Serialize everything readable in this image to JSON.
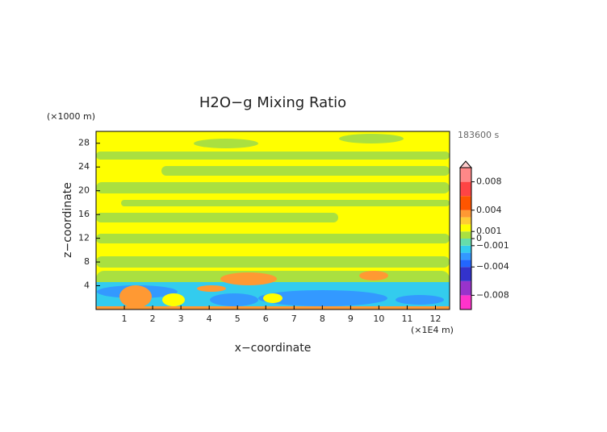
{
  "chart_data": {
    "type": "contour",
    "title": "H2O−g Mixing Ratio",
    "x_label": "x−coordinate",
    "y_label": "z−coordinate",
    "x_unit": "(×1E4 m)",
    "y_unit": "(×1000 m)",
    "time_label": "183600 s",
    "xlim": [
      0,
      12.5
    ],
    "xticks": [
      1,
      2,
      3,
      4,
      5,
      6,
      7,
      8,
      9,
      10,
      11,
      12
    ],
    "ylim": [
      0,
      30
    ],
    "yticks": [
      4,
      8,
      12,
      16,
      20,
      24,
      28
    ],
    "colorbar": {
      "clim": [
        -0.01,
        0.01
      ],
      "levels": [
        -0.01,
        -0.008,
        -0.006,
        -0.004,
        -0.003,
        -0.002,
        -0.001,
        0,
        0.001,
        0.002,
        0.003,
        0.004,
        0.006,
        0.008,
        0.01
      ],
      "colors": [
        "#ff33cc",
        "#9933cc",
        "#3333cc",
        "#2266ff",
        "#3399ff",
        "#33ccee",
        "#66ddaa",
        "#aae040",
        "#ffff00",
        "#ffcc33",
        "#ff9933",
        "#ff5500",
        "#ff4444",
        "#ff8888"
      ],
      "ticks": [
        {
          "value": 0.008,
          "label": "0.008"
        },
        {
          "value": 0.004,
          "label": "0.004"
        },
        {
          "value": 0.001,
          "label": "0.001"
        },
        0,
        {
          "value": -0.001,
          "label": "−0.001"
        },
        {
          "value": -0.004,
          "label": "−0.004"
        },
        {
          "value": -0.008,
          "label": "−0.008"
        }
      ]
    }
  }
}
